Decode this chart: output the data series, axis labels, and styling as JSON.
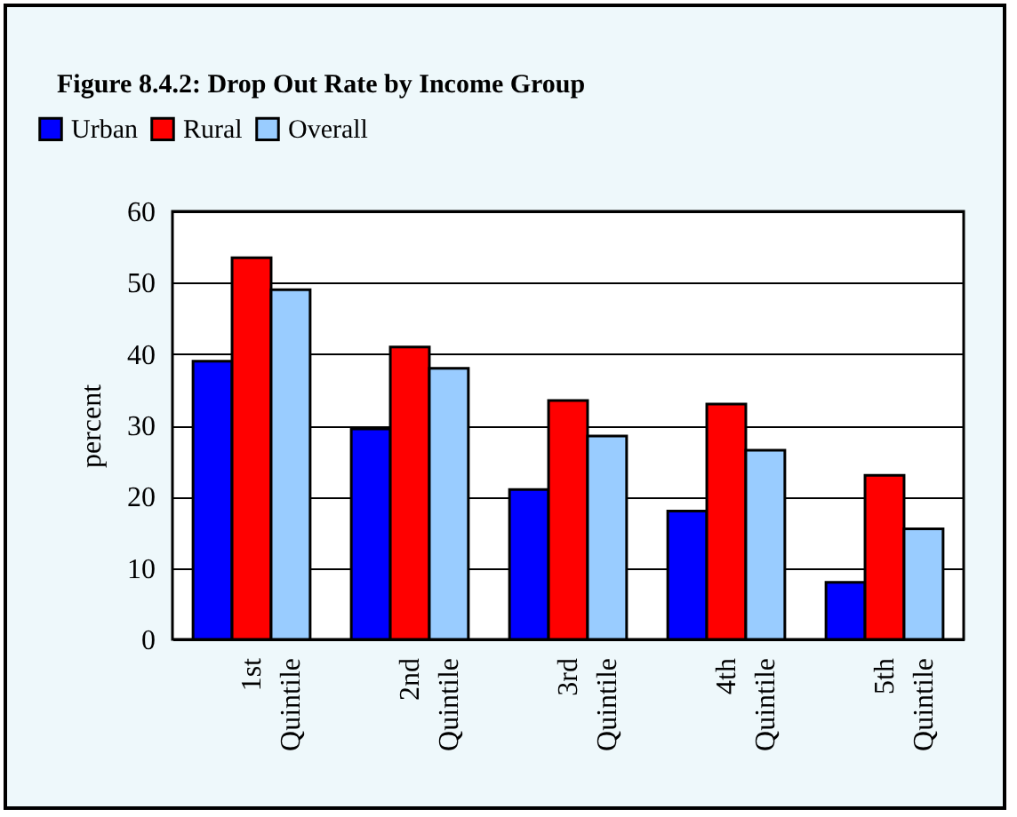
{
  "chart_data": {
    "type": "bar",
    "title": "Figure 8.4.2: Drop Out Rate by Income Group",
    "ylabel": "percent",
    "categories": [
      "1st Quintile",
      "2nd Quintile",
      "3rd Quintile",
      "4th Quintile",
      "5th Quintile"
    ],
    "series": [
      {
        "name": "Urban",
        "color": "#0000ff",
        "values": [
          39,
          29.5,
          21,
          18,
          8
        ]
      },
      {
        "name": "Rural",
        "color": "#ff0000",
        "values": [
          53.5,
          41,
          33.5,
          33,
          23
        ]
      },
      {
        "name": "Overall",
        "color": "#99ccff",
        "values": [
          49,
          38,
          28.5,
          26.5,
          15.5
        ]
      }
    ],
    "ylim": [
      0,
      60
    ],
    "yticks": [
      0,
      10,
      20,
      30,
      40,
      50,
      60
    ],
    "grid": "y",
    "legend": "top left"
  }
}
